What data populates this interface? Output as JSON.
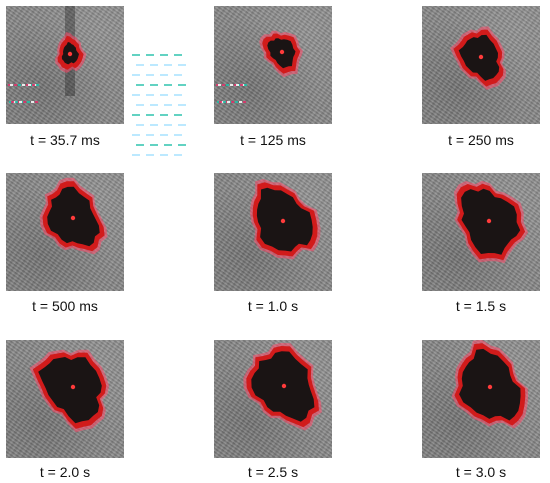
{
  "figure": {
    "panels": [
      {
        "label": "t = 35.7 ms",
        "stage": 0.22
      },
      {
        "label": "t = 125 ms",
        "stage": 0.38
      },
      {
        "label": "t = 250 ms",
        "stage": 0.6
      },
      {
        "label": "t = 500 ms",
        "stage": 0.82
      },
      {
        "label": "t = 1.0 s",
        "stage": 0.92
      },
      {
        "label": "t = 1.5 s",
        "stage": 0.95
      },
      {
        "label": "t = 2.0 s",
        "stage": 0.97
      },
      {
        "label": "t = 2.5 s",
        "stage": 0.99
      },
      {
        "label": "t = 3.0 s",
        "stage": 1.0
      }
    ],
    "colors": {
      "background": "#ffffff",
      "texture_base": "#8a8a8a",
      "spot_core": "#1a1414",
      "spot_ring": "#d11b1b",
      "spot_glow": "#ff4a6a",
      "center_dot": "#ff3b3b",
      "artifact": "#1fbfa8"
    }
  }
}
